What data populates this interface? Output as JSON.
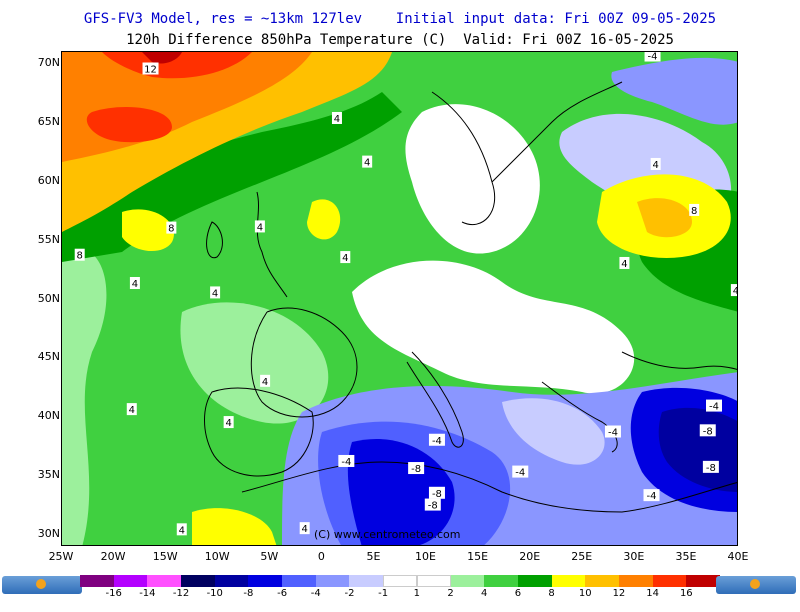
{
  "header": {
    "line1": "GFS-FV3 Model, res = ~13km 127lev    Initial input data: Fri 00Z 09-05-2025",
    "line2": "120h Difference 850hPa Temperature (C)  Valid: Fri 00Z 16-05-2025"
  },
  "map": {
    "lat_labels": [
      "70N",
      "65N",
      "60N",
      "55N",
      "50N",
      "45N",
      "40N",
      "35N",
      "30N"
    ],
    "lon_labels": [
      "25W",
      "20W",
      "15W",
      "10W",
      "5W",
      "0",
      "5E",
      "10E",
      "15E",
      "20E",
      "25E",
      "30E",
      "35E",
      "40E"
    ],
    "copyright": "(C) www.centrometeo.com",
    "contour_labels": [
      {
        "text": "12",
        "lon": -16.5,
        "lat": 69.6
      },
      {
        "text": "4",
        "lon": 1.4,
        "lat": 65.4
      },
      {
        "text": "4",
        "lon": 4.3,
        "lat": 61.7
      },
      {
        "text": "4",
        "lon": -18,
        "lat": 51.4
      },
      {
        "text": "4",
        "lon": -10.3,
        "lat": 50.6
      },
      {
        "text": "8",
        "lon": -14.5,
        "lat": 56.1
      },
      {
        "text": "8",
        "lon": -23.3,
        "lat": 53.8
      },
      {
        "text": "4",
        "lon": -6,
        "lat": 56.2
      },
      {
        "text": "4",
        "lon": 2.2,
        "lat": 53.6
      },
      {
        "text": "4",
        "lon": -18.3,
        "lat": 40.7
      },
      {
        "text": "4",
        "lon": -5.5,
        "lat": 43.1
      },
      {
        "text": "4",
        "lon": -9,
        "lat": 39.6
      },
      {
        "text": "4",
        "lon": -13.5,
        "lat": 30.5
      },
      {
        "text": "4",
        "lon": -1.7,
        "lat": 30.6
      },
      {
        "text": "-4",
        "lon": 31.7,
        "lat": 70.7
      },
      {
        "text": "4",
        "lon": 32,
        "lat": 61.5
      },
      {
        "text": "8",
        "lon": 35.7,
        "lat": 57.6
      },
      {
        "text": "4",
        "lon": 29,
        "lat": 53.1
      },
      {
        "text": "4",
        "lon": 39.7,
        "lat": 50.8
      },
      {
        "text": "-4",
        "lon": 11,
        "lat": 38.1
      },
      {
        "text": "-4",
        "lon": 2.3,
        "lat": 36.3
      },
      {
        "text": "-8",
        "lon": 9.0,
        "lat": 35.7
      },
      {
        "text": "-4",
        "lon": 19.0,
        "lat": 35.4
      },
      {
        "text": "-8",
        "lon": 11.0,
        "lat": 33.6
      },
      {
        "text": "-8",
        "lon": 10.6,
        "lat": 32.6
      },
      {
        "text": "-4",
        "lon": 27.9,
        "lat": 38.8
      },
      {
        "text": "-4",
        "lon": 31.6,
        "lat": 33.4
      },
      {
        "text": "-4",
        "lon": 37.6,
        "lat": 41.0
      },
      {
        "text": "-8",
        "lon": 41.2,
        "lat": 41.4
      },
      {
        "text": "-8",
        "lon": 37.0,
        "lat": 38.9
      },
      {
        "text": "-8",
        "lon": 37.3,
        "lat": 35.8
      }
    ]
  },
  "legend": {
    "colors": [
      "#7f0080",
      "#b400ff",
      "#ff50ff",
      "#000060",
      "#0000a0",
      "#0000e0",
      "#5060ff",
      "#8a96ff",
      "#c8ccff",
      "#ffffff",
      "#ffffff",
      "#9cf09c",
      "#40d040",
      "#00a000",
      "#ffff00",
      "#ffc000",
      "#ff8000",
      "#ff3000",
      "#c00000"
    ],
    "labels": [
      "-16",
      "-14",
      "-12",
      "-10",
      "-8",
      "-6",
      "-4",
      "-2",
      "-1",
      "1",
      "2",
      "4",
      "6",
      "8",
      "10",
      "12",
      "14",
      "16"
    ],
    "logo_text": "centrometeo"
  }
}
